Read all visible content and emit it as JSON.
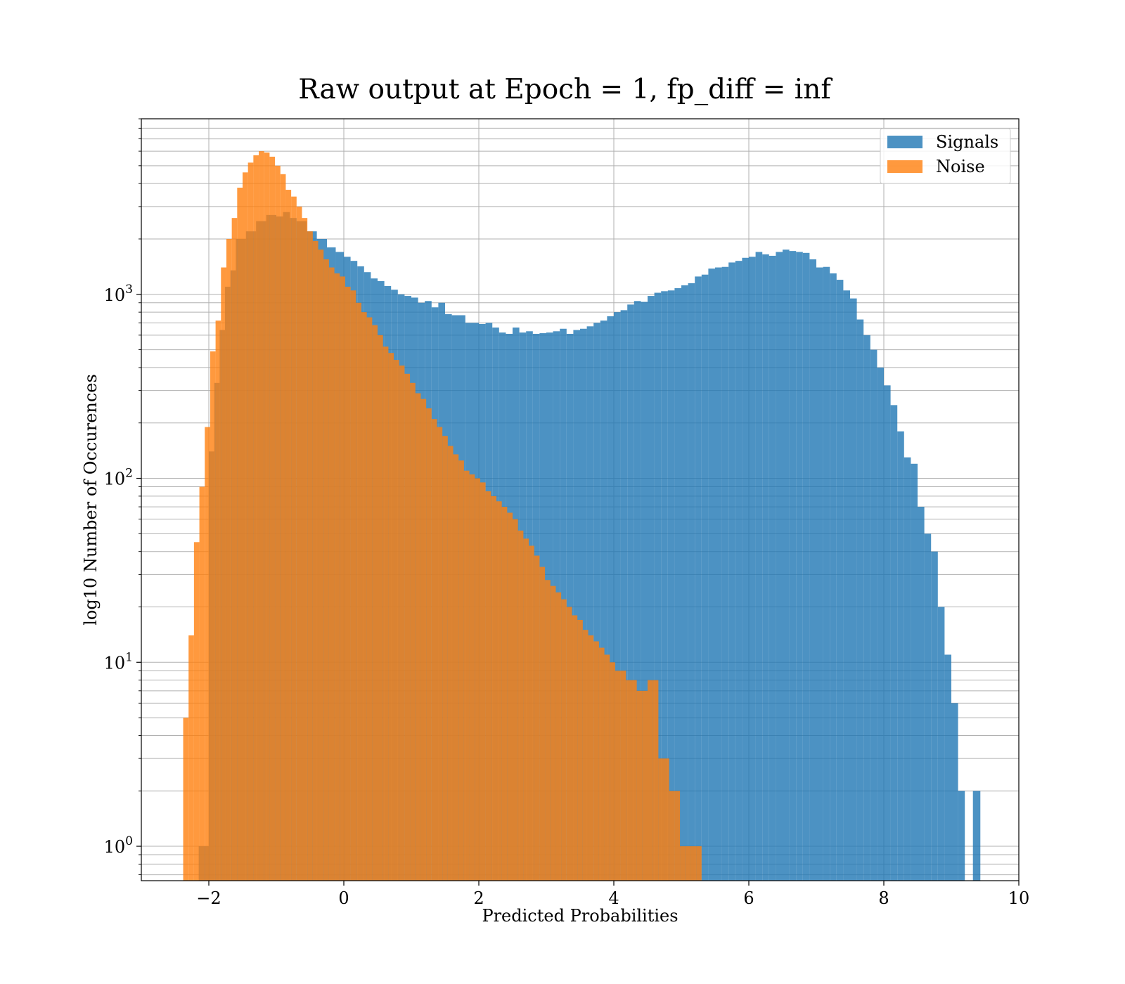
{
  "chart_data": {
    "type": "bar",
    "title": "Raw output at Epoch = 1, fp_diff = inf",
    "xlabel": "Predicted Probabilities",
    "ylabel": "log10 Number of Occurences",
    "xlim": [
      -3,
      10
    ],
    "ylim": [
      0.65,
      9000
    ],
    "yscale": "log",
    "grid": true,
    "legend_position": "top-right",
    "x_ticks": [
      {
        "value": -2,
        "label": "−2"
      },
      {
        "value": 0,
        "label": "0"
      },
      {
        "value": 2,
        "label": "2"
      },
      {
        "value": 4,
        "label": "4"
      },
      {
        "value": 6,
        "label": "6"
      },
      {
        "value": 8,
        "label": "8"
      },
      {
        "value": 10,
        "label": "10"
      }
    ],
    "y_ticks": [
      {
        "value": 1,
        "base": "10",
        "exp": "0"
      },
      {
        "value": 10,
        "base": "10",
        "exp": "1"
      },
      {
        "value": 100,
        "base": "10",
        "exp": "2"
      },
      {
        "value": 1000,
        "base": "10",
        "exp": "3"
      }
    ],
    "series": [
      {
        "name": "Signals",
        "color": "#1f77b4",
        "opacity": 0.8,
        "bins": [
          [
            -2.15,
            -2.0,
            1
          ],
          [
            -2.0,
            -1.92,
            140
          ],
          [
            -1.92,
            -1.84,
            330
          ],
          [
            -1.84,
            -1.76,
            640
          ],
          [
            -1.76,
            -1.68,
            1100
          ],
          [
            -1.68,
            -1.6,
            1350
          ],
          [
            -1.6,
            -1.45,
            2000
          ],
          [
            -1.45,
            -1.3,
            2200
          ],
          [
            -1.3,
            -1.15,
            2500
          ],
          [
            -1.15,
            -1.0,
            2700
          ],
          [
            -1.0,
            -0.9,
            2650
          ],
          [
            -0.9,
            -0.8,
            2800
          ],
          [
            -0.8,
            -0.7,
            2600
          ],
          [
            -0.7,
            -0.55,
            2500
          ],
          [
            -0.55,
            -0.4,
            2200
          ],
          [
            -0.4,
            -0.25,
            2000
          ],
          [
            -0.25,
            -0.12,
            1800
          ],
          [
            -0.12,
            0.0,
            1700
          ],
          [
            0.0,
            0.1,
            1600
          ],
          [
            0.1,
            0.2,
            1520
          ],
          [
            0.2,
            0.3,
            1420
          ],
          [
            0.3,
            0.4,
            1320
          ],
          [
            0.4,
            0.5,
            1220
          ],
          [
            0.5,
            0.6,
            1180
          ],
          [
            0.6,
            0.7,
            1110
          ],
          [
            0.7,
            0.8,
            1060
          ],
          [
            0.8,
            0.9,
            1000
          ],
          [
            0.9,
            1.0,
            980
          ],
          [
            1.0,
            1.1,
            960
          ],
          [
            1.1,
            1.2,
            900
          ],
          [
            1.2,
            1.3,
            920
          ],
          [
            1.3,
            1.4,
            850
          ],
          [
            1.4,
            1.5,
            900
          ],
          [
            1.5,
            1.6,
            780
          ],
          [
            1.6,
            1.8,
            770
          ],
          [
            1.8,
            2.0,
            700
          ],
          [
            2.0,
            2.1,
            690
          ],
          [
            2.1,
            2.2,
            700
          ],
          [
            2.2,
            2.3,
            660
          ],
          [
            2.3,
            2.4,
            620
          ],
          [
            2.4,
            2.5,
            610
          ],
          [
            2.5,
            2.6,
            660
          ],
          [
            2.6,
            2.7,
            620
          ],
          [
            2.7,
            2.8,
            630
          ],
          [
            2.8,
            2.9,
            610
          ],
          [
            2.9,
            3.0,
            615
          ],
          [
            3.0,
            3.1,
            620
          ],
          [
            3.1,
            3.2,
            630
          ],
          [
            3.2,
            3.3,
            650
          ],
          [
            3.3,
            3.4,
            610
          ],
          [
            3.4,
            3.5,
            640
          ],
          [
            3.5,
            3.6,
            650
          ],
          [
            3.6,
            3.7,
            670
          ],
          [
            3.7,
            3.8,
            700
          ],
          [
            3.8,
            3.9,
            720
          ],
          [
            3.9,
            4.0,
            760
          ],
          [
            4.0,
            4.1,
            800
          ],
          [
            4.1,
            4.2,
            820
          ],
          [
            4.2,
            4.3,
            880
          ],
          [
            4.3,
            4.4,
            920
          ],
          [
            4.4,
            4.5,
            910
          ],
          [
            4.5,
            4.6,
            980
          ],
          [
            4.6,
            4.7,
            1020
          ],
          [
            4.7,
            4.8,
            1040
          ],
          [
            4.8,
            4.9,
            1050
          ],
          [
            4.9,
            5.0,
            1080
          ],
          [
            5.0,
            5.1,
            1120
          ],
          [
            5.1,
            5.2,
            1150
          ],
          [
            5.2,
            5.3,
            1250
          ],
          [
            5.3,
            5.4,
            1280
          ],
          [
            5.4,
            5.5,
            1380
          ],
          [
            5.5,
            5.6,
            1400
          ],
          [
            5.6,
            5.7,
            1410
          ],
          [
            5.7,
            5.8,
            1490
          ],
          [
            5.8,
            5.9,
            1520
          ],
          [
            5.9,
            6.0,
            1580
          ],
          [
            6.0,
            6.1,
            1600
          ],
          [
            6.1,
            6.2,
            1700
          ],
          [
            6.2,
            6.3,
            1650
          ],
          [
            6.3,
            6.4,
            1620
          ],
          [
            6.4,
            6.5,
            1700
          ],
          [
            6.5,
            6.6,
            1750
          ],
          [
            6.6,
            6.7,
            1720
          ],
          [
            6.7,
            6.8,
            1700
          ],
          [
            6.8,
            6.9,
            1680
          ],
          [
            6.9,
            7.0,
            1550
          ],
          [
            7.0,
            7.1,
            1400
          ],
          [
            7.1,
            7.2,
            1410
          ],
          [
            7.2,
            7.3,
            1300
          ],
          [
            7.3,
            7.4,
            1200
          ],
          [
            7.4,
            7.5,
            1050
          ],
          [
            7.5,
            7.6,
            950
          ],
          [
            7.6,
            7.7,
            730
          ],
          [
            7.7,
            7.8,
            600
          ],
          [
            7.8,
            7.9,
            500
          ],
          [
            7.9,
            8.0,
            400
          ],
          [
            8.0,
            8.1,
            320
          ],
          [
            8.1,
            8.2,
            250
          ],
          [
            8.2,
            8.3,
            180
          ],
          [
            8.3,
            8.4,
            130
          ],
          [
            8.4,
            8.5,
            120
          ],
          [
            8.5,
            8.6,
            70
          ],
          [
            8.6,
            8.7,
            50
          ],
          [
            8.7,
            8.8,
            40
          ],
          [
            8.8,
            8.9,
            20
          ],
          [
            8.9,
            9.0,
            11
          ],
          [
            9.0,
            9.1,
            6
          ],
          [
            9.1,
            9.2,
            2
          ],
          [
            9.32,
            9.43,
            2
          ]
        ]
      },
      {
        "name": "Noise",
        "color": "#ff7f0e",
        "opacity": 0.8,
        "bins": [
          [
            -2.38,
            -2.3,
            5
          ],
          [
            -2.3,
            -2.22,
            14
          ],
          [
            -2.22,
            -2.14,
            45
          ],
          [
            -2.14,
            -2.06,
            90
          ],
          [
            -2.06,
            -1.98,
            190
          ],
          [
            -1.98,
            -1.9,
            490
          ],
          [
            -1.9,
            -1.82,
            720
          ],
          [
            -1.82,
            -1.74,
            1400
          ],
          [
            -1.74,
            -1.66,
            2000
          ],
          [
            -1.66,
            -1.58,
            2600
          ],
          [
            -1.58,
            -1.5,
            3800
          ],
          [
            -1.5,
            -1.42,
            4600
          ],
          [
            -1.42,
            -1.34,
            5200
          ],
          [
            -1.34,
            -1.26,
            5700
          ],
          [
            -1.26,
            -1.18,
            6000
          ],
          [
            -1.18,
            -1.1,
            5900
          ],
          [
            -1.1,
            -1.02,
            5600
          ],
          [
            -1.02,
            -0.94,
            5000
          ],
          [
            -0.94,
            -0.86,
            4500
          ],
          [
            -0.86,
            -0.78,
            3700
          ],
          [
            -0.78,
            -0.7,
            3400
          ],
          [
            -0.7,
            -0.62,
            3000
          ],
          [
            -0.62,
            -0.54,
            2600
          ],
          [
            -0.54,
            -0.46,
            2200
          ],
          [
            -0.46,
            -0.38,
            1950
          ],
          [
            -0.38,
            -0.3,
            1750
          ],
          [
            -0.3,
            -0.22,
            1550
          ],
          [
            -0.22,
            -0.14,
            1400
          ],
          [
            -0.14,
            -0.06,
            1300
          ],
          [
            -0.06,
            0.02,
            1250
          ],
          [
            0.02,
            0.1,
            1100
          ],
          [
            0.1,
            0.18,
            1050
          ],
          [
            0.18,
            0.26,
            900
          ],
          [
            0.26,
            0.34,
            800
          ],
          [
            0.34,
            0.42,
            750
          ],
          [
            0.42,
            0.5,
            680
          ],
          [
            0.5,
            0.58,
            600
          ],
          [
            0.58,
            0.66,
            520
          ],
          [
            0.66,
            0.74,
            480
          ],
          [
            0.74,
            0.82,
            440
          ],
          [
            0.82,
            0.9,
            410
          ],
          [
            0.9,
            0.98,
            370
          ],
          [
            0.98,
            1.06,
            330
          ],
          [
            1.06,
            1.14,
            290
          ],
          [
            1.14,
            1.22,
            270
          ],
          [
            1.22,
            1.3,
            240
          ],
          [
            1.3,
            1.38,
            210
          ],
          [
            1.38,
            1.46,
            190
          ],
          [
            1.46,
            1.54,
            170
          ],
          [
            1.54,
            1.62,
            150
          ],
          [
            1.62,
            1.7,
            135
          ],
          [
            1.7,
            1.78,
            125
          ],
          [
            1.78,
            1.86,
            110
          ],
          [
            1.86,
            1.94,
            105
          ],
          [
            1.94,
            2.02,
            100
          ],
          [
            2.02,
            2.1,
            95
          ],
          [
            2.1,
            2.18,
            85
          ],
          [
            2.18,
            2.26,
            80
          ],
          [
            2.26,
            2.34,
            75
          ],
          [
            2.34,
            2.42,
            70
          ],
          [
            2.42,
            2.5,
            65
          ],
          [
            2.5,
            2.58,
            60
          ],
          [
            2.58,
            2.66,
            52
          ],
          [
            2.66,
            2.74,
            47
          ],
          [
            2.74,
            2.82,
            43
          ],
          [
            2.82,
            2.9,
            38
          ],
          [
            2.9,
            2.98,
            33
          ],
          [
            2.98,
            3.06,
            28
          ],
          [
            3.06,
            3.14,
            26
          ],
          [
            3.14,
            3.22,
            24
          ],
          [
            3.22,
            3.3,
            22
          ],
          [
            3.3,
            3.38,
            20
          ],
          [
            3.38,
            3.46,
            18
          ],
          [
            3.46,
            3.54,
            17
          ],
          [
            3.54,
            3.62,
            15
          ],
          [
            3.62,
            3.7,
            14
          ],
          [
            3.7,
            3.78,
            13
          ],
          [
            3.78,
            3.86,
            12
          ],
          [
            3.86,
            3.94,
            11
          ],
          [
            3.94,
            4.02,
            10
          ],
          [
            4.02,
            4.1,
            9
          ],
          [
            4.1,
            4.18,
            9
          ],
          [
            4.18,
            4.26,
            8
          ],
          [
            4.26,
            4.34,
            8
          ],
          [
            4.34,
            4.42,
            7
          ],
          [
            4.42,
            4.5,
            7
          ],
          [
            4.5,
            4.58,
            8
          ],
          [
            4.58,
            4.66,
            8
          ],
          [
            4.66,
            4.74,
            3
          ],
          [
            4.74,
            4.82,
            3
          ],
          [
            4.82,
            4.9,
            2
          ],
          [
            4.9,
            4.98,
            2
          ],
          [
            4.98,
            5.06,
            1
          ],
          [
            5.06,
            5.14,
            1
          ],
          [
            5.14,
            5.22,
            1
          ],
          [
            5.22,
            5.3,
            1
          ]
        ]
      }
    ]
  }
}
